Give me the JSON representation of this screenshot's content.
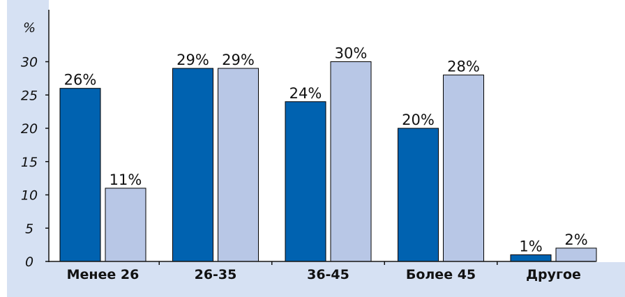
{
  "chart_data": {
    "type": "bar",
    "ylabel": "%",
    "ylim": [
      0,
      37
    ],
    "yticks": [
      0,
      5,
      10,
      15,
      20,
      25,
      30
    ],
    "grid": false,
    "legend": "none",
    "categories": [
      "Менее 26",
      "26-35",
      "36-45",
      "Более 45",
      "Другое"
    ],
    "series": [
      {
        "values": [
          26,
          29,
          24,
          20,
          1
        ],
        "labels": [
          "26%",
          "29%",
          "24%",
          "20%",
          "1%"
        ],
        "color": "#0062b0"
      },
      {
        "values": [
          11,
          29,
          30,
          28,
          2
        ],
        "labels": [
          "11%",
          "29%",
          "30%",
          "28%",
          "2%"
        ],
        "color": "#b8c7e6"
      }
    ],
    "colors": {
      "background_band": "#d6e1f3",
      "axis": "#111111",
      "bar_border": "#000000"
    }
  }
}
